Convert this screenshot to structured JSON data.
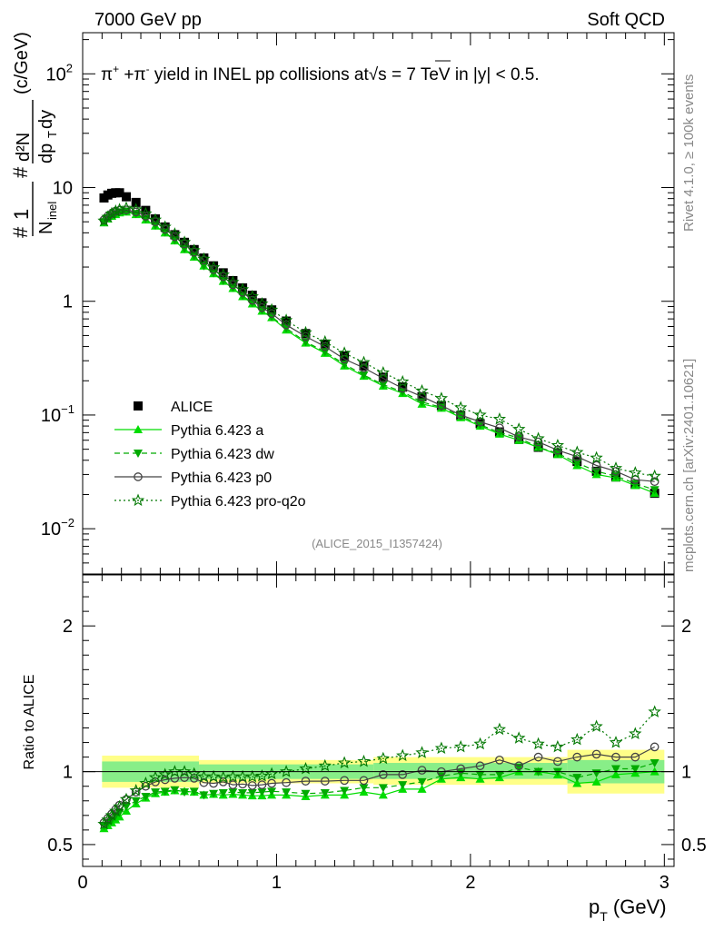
{
  "header": {
    "left": "7000 GeV pp",
    "right": "Soft QCD"
  },
  "side_labels": {
    "rivet": "Rivet 4.1.0, ≥ 100k events",
    "mcplots": "mcplots.cern.ch [arXiv:2401.10621]"
  },
  "analysis_id": "(ALICE_2015_I1357424)",
  "colors": {
    "ALICE": "#000000",
    "a": "#00dd00",
    "dw": "#00aa00",
    "p0": "#444444",
    "pro": "#007700",
    "band_yellow": "#ffff88",
    "band_green": "#88ee88"
  },
  "chart_data": [
    {
      "type": "scatter",
      "panel": "main",
      "title": "π⁺ +π⁻ yield in INEL pp collisions at√s = 7 TeV in |y| < 0.5.",
      "title_parts": {
        "pre": "π",
        "sup1": "+",
        "mid": " +π",
        "sup2": "-",
        "post": " yield in INEL pp collisions at",
        "sqrt": "√s",
        "tail": " =  7 TeV in |y| < 0.5."
      },
      "ylabel": "# 1/N_inel # d²N/dp_T dy (c/GeV)",
      "ylabel_parts": {
        "hash": "#",
        "one": "1",
        "ninel": "N",
        "inel": "inel",
        "d2n": "d²N",
        "dpt": "dp",
        "t": "T",
        "dy": "dy",
        "unit": "(c/GeV)"
      },
      "yscale": "log",
      "ylim": [
        0.004,
        230
      ],
      "xlim": [
        0,
        3.05
      ],
      "yticks": [
        {
          "value": 100,
          "base": "10",
          "exp": "2"
        },
        {
          "value": 10,
          "base": "10",
          "exp": ""
        },
        {
          "value": 1,
          "base": "1",
          "exp": ""
        },
        {
          "value": 0.1,
          "base": "10",
          "exp": "−1"
        },
        {
          "value": 0.01,
          "base": "10",
          "exp": "−2"
        }
      ],
      "x": [
        0.11,
        0.13,
        0.15,
        0.17,
        0.19,
        0.225,
        0.275,
        0.325,
        0.375,
        0.425,
        0.475,
        0.525,
        0.575,
        0.625,
        0.675,
        0.725,
        0.775,
        0.825,
        0.875,
        0.925,
        0.975,
        1.05,
        1.15,
        1.25,
        1.35,
        1.45,
        1.55,
        1.65,
        1.75,
        1.85,
        1.95,
        2.05,
        2.15,
        2.25,
        2.35,
        2.45,
        2.55,
        2.65,
        2.75,
        2.85,
        2.95
      ],
      "series": [
        {
          "name": "ALICE",
          "marker": "square",
          "values": [
            8.1,
            8.6,
            8.9,
            9.0,
            9.0,
            8.3,
            7.4,
            6.3,
            5.3,
            4.5,
            3.85,
            3.3,
            2.85,
            2.4,
            2.05,
            1.78,
            1.52,
            1.31,
            1.13,
            0.97,
            0.84,
            0.67,
            0.52,
            0.42,
            0.33,
            0.27,
            0.215,
            0.176,
            0.145,
            0.121,
            0.099,
            0.084,
            0.071,
            0.061,
            0.052,
            0.046,
            0.039,
            0.032,
            0.0285,
            0.0245,
            0.0205
          ]
        },
        {
          "name": "Pythia 6.423 a",
          "marker": "triangle-up",
          "values": [
            4.9,
            5.3,
            5.6,
            5.8,
            6.0,
            6.1,
            5.8,
            5.2,
            4.6,
            4.0,
            3.4,
            2.85,
            2.45,
            2.05,
            1.75,
            1.5,
            1.3,
            1.1,
            0.95,
            0.82,
            0.72,
            0.56,
            0.43,
            0.35,
            0.27,
            0.22,
            0.18,
            0.155,
            0.125,
            0.115,
            0.095,
            0.08,
            0.068,
            0.06,
            0.052,
            0.045,
            0.036,
            0.03,
            0.028,
            0.024,
            0.0205
          ]
        },
        {
          "name": "Pythia 6.423 dw",
          "marker": "triangle-down",
          "values": [
            5.0,
            5.4,
            5.7,
            5.9,
            6.1,
            6.2,
            5.9,
            5.3,
            4.65,
            4.05,
            3.45,
            2.9,
            2.5,
            2.05,
            1.77,
            1.52,
            1.32,
            1.12,
            0.97,
            0.84,
            0.73,
            0.58,
            0.44,
            0.36,
            0.28,
            0.225,
            0.185,
            0.16,
            0.13,
            0.117,
            0.098,
            0.082,
            0.07,
            0.063,
            0.052,
            0.046,
            0.038,
            0.032,
            0.029,
            0.025,
            0.022
          ]
        },
        {
          "name": "Pythia 6.423 p0",
          "marker": "circle-open",
          "values": [
            5.2,
            5.6,
            5.9,
            6.2,
            6.3,
            6.35,
            6.1,
            5.6,
            5.0,
            4.3,
            3.7,
            3.2,
            2.7,
            2.3,
            1.9,
            1.65,
            1.4,
            1.2,
            1.02,
            0.88,
            0.78,
            0.62,
            0.49,
            0.4,
            0.31,
            0.26,
            0.21,
            0.172,
            0.145,
            0.121,
            0.1,
            0.087,
            0.077,
            0.064,
            0.058,
            0.049,
            0.043,
            0.036,
            0.032,
            0.027,
            0.026
          ]
        },
        {
          "name": "Pythia 6.423 pro-q2o",
          "marker": "star-open",
          "values": [
            5.1,
            5.5,
            5.9,
            6.2,
            6.4,
            6.6,
            6.4,
            5.9,
            5.2,
            4.5,
            3.9,
            3.3,
            2.8,
            2.35,
            1.98,
            1.71,
            1.47,
            1.27,
            1.1,
            0.95,
            0.84,
            0.68,
            0.53,
            0.44,
            0.35,
            0.29,
            0.235,
            0.196,
            0.163,
            0.14,
            0.116,
            0.1,
            0.092,
            0.075,
            0.062,
            0.054,
            0.047,
            0.042,
            0.034,
            0.031,
            0.029
          ]
        }
      ],
      "legend_position": "lower-left",
      "legend": [
        {
          "key": "ALICE",
          "label": "ALICE"
        },
        {
          "key": "a",
          "label": "Pythia 6.423 a"
        },
        {
          "key": "dw",
          "label": "Pythia 6.423 dw"
        },
        {
          "key": "p0",
          "label": "Pythia 6.423 p0"
        },
        {
          "key": "pro",
          "label": "Pythia 6.423 pro-q2o"
        }
      ]
    },
    {
      "type": "line",
      "panel": "ratio",
      "ylabel": "Ratio to ALICE",
      "xlabel": "p_T (GeV)",
      "xlabel_parts": {
        "p": "p",
        "sub": "T",
        "unit": " (GeV)"
      },
      "ylim": [
        0.35,
        2.35
      ],
      "xlim": [
        0,
        3.05
      ],
      "yticks": [
        {
          "value": 0.5,
          "label": "0.5"
        },
        {
          "value": 1,
          "label": "1"
        },
        {
          "value": 2,
          "label": "2"
        }
      ],
      "xticks": [
        {
          "value": 0,
          "label": "0"
        },
        {
          "value": 1,
          "label": "1"
        },
        {
          "value": 2,
          "label": "2"
        },
        {
          "value": 3,
          "label": "3"
        }
      ],
      "uncertainty_bands": [
        {
          "x_range": [
            0.1,
            0.6
          ],
          "yellow": [
            0.89,
            1.11
          ],
          "green": [
            0.93,
            1.07
          ]
        },
        {
          "x_range": [
            0.6,
            1.5
          ],
          "yellow": [
            0.92,
            1.08
          ],
          "green": [
            0.95,
            1.05
          ]
        },
        {
          "x_range": [
            1.5,
            2.5
          ],
          "yellow": [
            0.91,
            1.1
          ],
          "green": [
            0.95,
            1.06
          ]
        },
        {
          "x_range": [
            2.5,
            3.0
          ],
          "yellow": [
            0.85,
            1.15
          ],
          "green": [
            0.92,
            1.08
          ]
        }
      ],
      "x": [
        0.11,
        0.13,
        0.15,
        0.17,
        0.19,
        0.225,
        0.275,
        0.325,
        0.375,
        0.425,
        0.475,
        0.525,
        0.575,
        0.625,
        0.675,
        0.725,
        0.775,
        0.825,
        0.875,
        0.925,
        0.975,
        1.05,
        1.15,
        1.25,
        1.35,
        1.45,
        1.55,
        1.65,
        1.75,
        1.85,
        1.95,
        2.05,
        2.15,
        2.25,
        2.35,
        2.45,
        2.55,
        2.65,
        2.75,
        2.85,
        2.95
      ],
      "series": [
        {
          "name": "Pythia 6.423 a",
          "marker": "triangle-up",
          "values": [
            0.61,
            0.63,
            0.65,
            0.67,
            0.69,
            0.73,
            0.78,
            0.82,
            0.85,
            0.86,
            0.87,
            0.865,
            0.86,
            0.84,
            0.845,
            0.84,
            0.845,
            0.84,
            0.835,
            0.835,
            0.84,
            0.84,
            0.83,
            0.84,
            0.84,
            0.86,
            0.84,
            0.88,
            0.88,
            0.95,
            0.96,
            0.95,
            0.96,
            1.0,
            1.0,
            0.98,
            0.92,
            0.93,
            0.98,
            0.99,
            1.0
          ]
        },
        {
          "name": "Pythia 6.423 dw",
          "marker": "triangle-down",
          "values": [
            0.63,
            0.65,
            0.67,
            0.7,
            0.72,
            0.76,
            0.8,
            0.83,
            0.86,
            0.865,
            0.875,
            0.86,
            0.865,
            0.84,
            0.85,
            0.855,
            0.86,
            0.855,
            0.855,
            0.86,
            0.865,
            0.86,
            0.85,
            0.855,
            0.87,
            0.89,
            0.89,
            0.91,
            0.93,
            0.97,
            0.99,
            0.98,
            0.98,
            1.03,
            1.0,
            1.0,
            0.96,
            0.99,
            1.02,
            1.02,
            1.06
          ]
        },
        {
          "name": "Pythia 6.423 p0",
          "marker": "circle-open",
          "values": [
            0.65,
            0.68,
            0.71,
            0.74,
            0.77,
            0.81,
            0.86,
            0.9,
            0.93,
            0.945,
            0.955,
            0.96,
            0.955,
            0.925,
            0.92,
            0.93,
            0.91,
            0.915,
            0.905,
            0.91,
            0.92,
            0.925,
            0.935,
            0.935,
            0.94,
            0.94,
            0.98,
            0.98,
            1.01,
            1.0,
            1.02,
            1.04,
            1.08,
            1.04,
            1.1,
            1.07,
            1.1,
            1.12,
            1.1,
            1.1,
            1.17
          ]
        },
        {
          "name": "Pythia 6.423 pro-q2o",
          "marker": "star-open",
          "values": [
            0.64,
            0.67,
            0.7,
            0.73,
            0.76,
            0.81,
            0.87,
            0.92,
            0.96,
            0.98,
            1.0,
            1.0,
            0.985,
            0.965,
            0.965,
            0.96,
            0.965,
            0.965,
            0.965,
            0.97,
            0.985,
            1.0,
            1.02,
            1.04,
            1.06,
            1.07,
            1.09,
            1.11,
            1.13,
            1.16,
            1.17,
            1.19,
            1.29,
            1.23,
            1.19,
            1.17,
            1.22,
            1.31,
            1.2,
            1.26,
            1.41
          ]
        }
      ]
    }
  ]
}
